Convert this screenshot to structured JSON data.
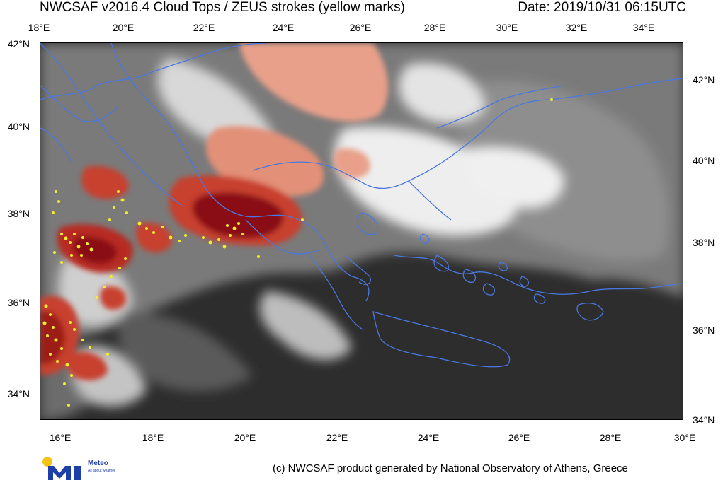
{
  "header": {
    "title": "NWCSAF v2016.4 Cloud Tops / ZEUS strokes (yellow marks)",
    "date": "Date: 2019/10/31 06:15UTC"
  },
  "axes": {
    "top_lon": [
      "18°E",
      "20°E",
      "22°E",
      "24°E",
      "26°E",
      "28°E",
      "30°E",
      "32°E",
      "34°E"
    ],
    "bottom_lon": [
      "16°E",
      "18°E",
      "20°E",
      "22°E",
      "24°E",
      "26°E",
      "28°E",
      "30°E"
    ],
    "left_lat": [
      "42°N",
      "40°N",
      "38°N",
      "36°N",
      "34°N"
    ],
    "right_lat": [
      "42°N",
      "40°N",
      "38°N",
      "36°N",
      "34°N"
    ]
  },
  "map": {
    "legend_note": "yellow marks = ZEUS strokes",
    "colors": {
      "sea_dark": "#2d2d2d",
      "cloud_grey": "#8a8a8a",
      "cloud_white": "#e8e8e8",
      "cold_top_light": "#e89a84",
      "cold_top_mid": "#c8412e",
      "cold_top_deep": "#8a0f14",
      "coastline": "#4a78e0",
      "strokes": "#f2ee2a"
    }
  },
  "footer": {
    "credit": "(c) NWCSAF product generated by National Observatory of Athens, Greece"
  },
  "logo": {
    "text": "Meteo",
    "sub": "All about weather"
  }
}
